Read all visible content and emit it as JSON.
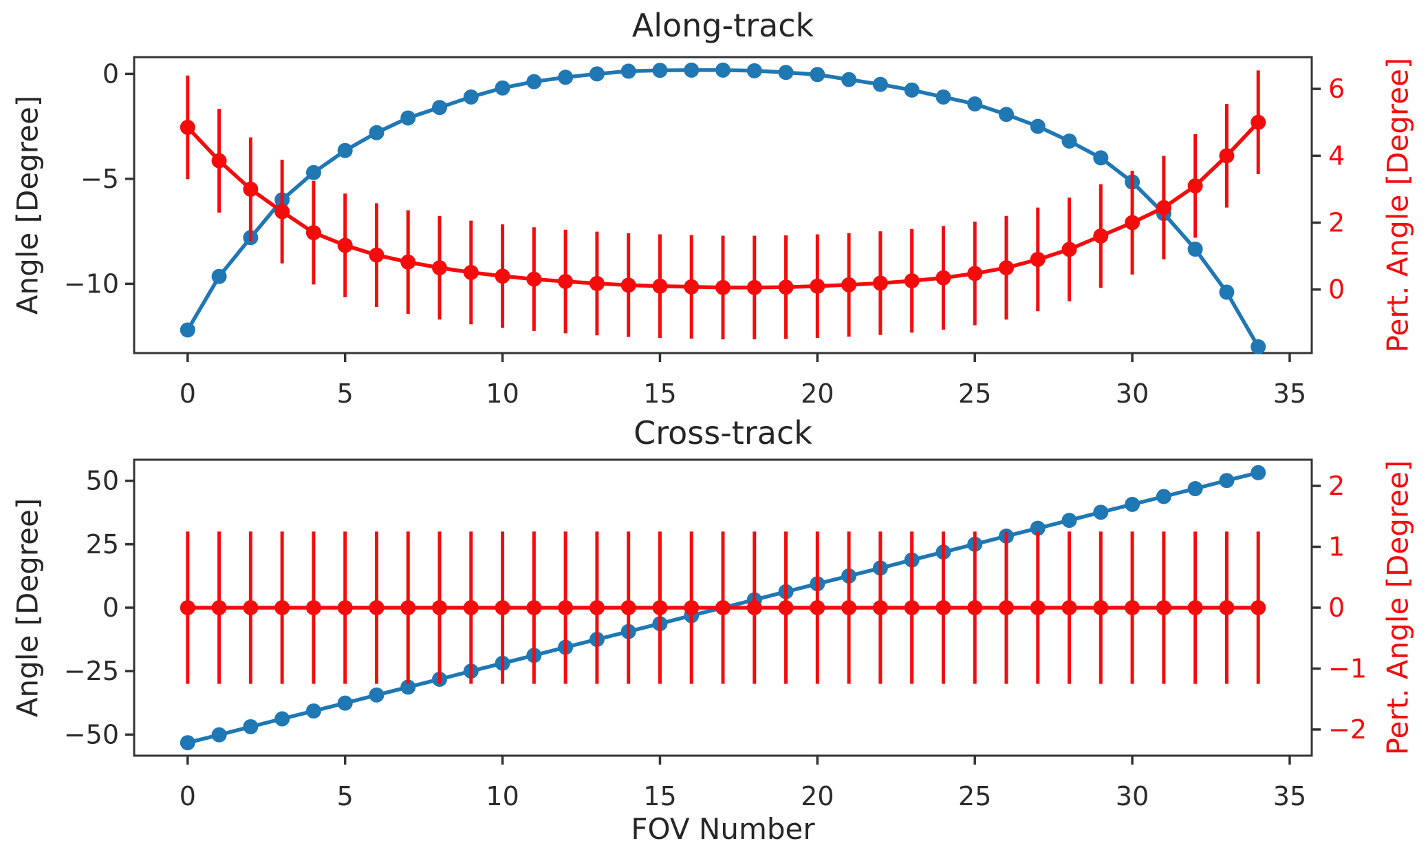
{
  "xlabel": "FOV Number",
  "colors": {
    "blue": "#1f77b4",
    "red": "#f40c0c",
    "frame": "#333333",
    "tick_text": "#2b2b2b",
    "background": "#ffffff"
  },
  "chart_data": [
    {
      "type": "line",
      "title": "Along-track",
      "ylabel_left": "Angle [Degree]",
      "ylabel_right": "Pert. Angle [Degree]",
      "xlim": [
        -1.7,
        35.7
      ],
      "xticks": [
        0,
        5,
        10,
        15,
        20,
        25,
        30,
        35
      ],
      "ylim_left": [
        -13.3,
        0.8
      ],
      "yticks_left": [
        0,
        -5,
        -10
      ],
      "ylim_right": [
        -1.9,
        6.95
      ],
      "yticks_right": [
        6,
        4,
        2,
        0
      ],
      "x": [
        0,
        1,
        2,
        3,
        4,
        5,
        6,
        7,
        8,
        9,
        10,
        11,
        12,
        13,
        14,
        15,
        16,
        17,
        18,
        19,
        20,
        21,
        22,
        23,
        24,
        25,
        26,
        27,
        28,
        29,
        30,
        31,
        32,
        33,
        34
      ],
      "series": [
        {
          "name": "angle",
          "axis": "left",
          "color": "blue",
          "marker": "o",
          "values": [
            -12.2,
            -9.65,
            -7.8,
            -6.0,
            -4.7,
            -3.65,
            -2.8,
            -2.1,
            -1.6,
            -1.1,
            -0.67,
            -0.37,
            -0.16,
            0.0,
            0.13,
            0.17,
            0.18,
            0.18,
            0.15,
            0.07,
            -0.03,
            -0.27,
            -0.5,
            -0.77,
            -1.1,
            -1.43,
            -1.93,
            -2.5,
            -3.2,
            -4.0,
            -5.15,
            -6.65,
            -8.35,
            -10.4,
            -13.0
          ]
        },
        {
          "name": "pert-angle",
          "axis": "right",
          "color": "red",
          "marker": "o",
          "yerr": 1.55,
          "values": [
            4.85,
            3.85,
            3.0,
            2.33,
            1.7,
            1.32,
            1.03,
            0.82,
            0.65,
            0.51,
            0.4,
            0.31,
            0.24,
            0.18,
            0.13,
            0.1,
            0.08,
            0.06,
            0.06,
            0.07,
            0.1,
            0.14,
            0.19,
            0.26,
            0.35,
            0.48,
            0.65,
            0.9,
            1.2,
            1.6,
            2.0,
            2.45,
            3.1,
            4.0,
            5.0
          ]
        }
      ]
    },
    {
      "type": "line",
      "title": "Cross-track",
      "ylabel_left": "Angle [Degree]",
      "ylabel_right": "Pert. Angle [Degree]",
      "xlim": [
        -1.7,
        35.7
      ],
      "xticks": [
        0,
        5,
        10,
        15,
        20,
        25,
        30,
        35
      ],
      "ylim_left": [
        -58.3,
        58.3
      ],
      "yticks_left": [
        50,
        25,
        0,
        -25,
        -50
      ],
      "ylim_right": [
        -2.43,
        2.43
      ],
      "yticks_right": [
        2,
        1,
        0,
        -1,
        -2
      ],
      "x": [
        0,
        1,
        2,
        3,
        4,
        5,
        6,
        7,
        8,
        9,
        10,
        11,
        12,
        13,
        14,
        15,
        16,
        17,
        18,
        19,
        20,
        21,
        22,
        23,
        24,
        25,
        26,
        27,
        28,
        29,
        30,
        31,
        32,
        33,
        34
      ],
      "series": [
        {
          "name": "angle",
          "axis": "left",
          "color": "blue",
          "marker": "o",
          "values": [
            -53.2,
            -50.1,
            -46.9,
            -43.8,
            -40.7,
            -37.6,
            -34.4,
            -31.3,
            -28.2,
            -25.0,
            -21.9,
            -18.8,
            -15.6,
            -12.5,
            -9.4,
            -6.3,
            -3.1,
            0.0,
            3.1,
            6.3,
            9.4,
            12.5,
            15.6,
            18.8,
            21.9,
            25.0,
            28.2,
            31.3,
            34.4,
            37.6,
            40.7,
            43.8,
            46.9,
            50.1,
            53.2
          ]
        },
        {
          "name": "pert-angle",
          "axis": "right",
          "color": "red",
          "marker": "o",
          "yerr": 1.25,
          "values": [
            0,
            0,
            0,
            0,
            0,
            0,
            0,
            0,
            0,
            0,
            0,
            0,
            0,
            0,
            0,
            0,
            0,
            0,
            0,
            0,
            0,
            0,
            0,
            0,
            0,
            0,
            0,
            0,
            0,
            0,
            0,
            0,
            0,
            0,
            0
          ]
        }
      ]
    }
  ]
}
